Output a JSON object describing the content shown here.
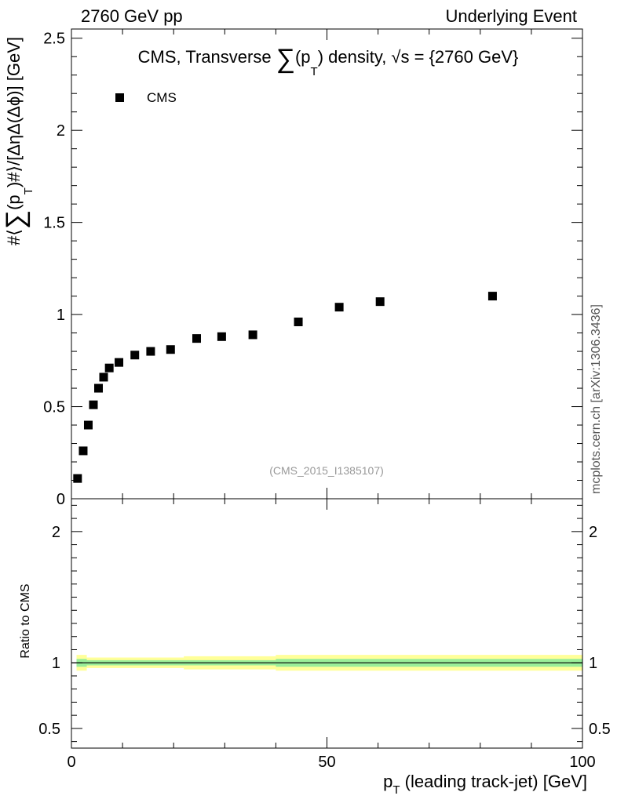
{
  "header": {
    "left": "2760 GeV pp",
    "right": "Underlying Event"
  },
  "side_label": "mcplots.cern.ch [arXiv:1306.3436]",
  "chart_data": [
    {
      "type": "scatter",
      "title_parts": {
        "pre": "CMS, Transverse ",
        "sum": "∑",
        "mid": "(p",
        "sub": "T",
        "post": ") density, √s = {2760 GeV}"
      },
      "ylabel_parts": {
        "pre": "#⟨",
        "sum": "∑",
        "mid": "(p",
        "sub": "T",
        "post": ")#⟩/[ΔηΔ(Δϕ)] [GeV]"
      },
      "xlim": [
        0,
        100
      ],
      "ylim": [
        0,
        2.55
      ],
      "yticks": [
        "0",
        "0.5",
        "1",
        "1.5",
        "2",
        "2.5"
      ],
      "legend": {
        "label": "CMS",
        "position": "top-left"
      },
      "annotation": "(CMS_2015_I1385107)",
      "series": [
        {
          "name": "CMS",
          "marker": "square",
          "x": [
            1.2,
            2.3,
            3.3,
            4.3,
            5.3,
            6.3,
            7.4,
            9.3,
            12.4,
            15.5,
            19.4,
            24.5,
            29.4,
            35.5,
            44.4,
            52.4,
            60.4,
            82.4
          ],
          "y": [
            0.11,
            0.26,
            0.4,
            0.51,
            0.6,
            0.66,
            0.71,
            0.74,
            0.78,
            0.8,
            0.81,
            0.87,
            0.88,
            0.89,
            0.96,
            1.04,
            1.07,
            1.1
          ]
        }
      ]
    },
    {
      "type": "line",
      "ylabel": "Ratio to CMS",
      "xlabel_parts": {
        "pre": "p",
        "sub": "T",
        "post": " (leading track-jet) [GeV]"
      },
      "xlim": [
        0,
        100
      ],
      "ylim": [
        0.35,
        2.25
      ],
      "xticks": [
        "0",
        "50",
        "100"
      ],
      "yticks": [
        "0.5",
        "1",
        "2"
      ],
      "reference": 1,
      "bands": [
        {
          "kind": "total-uncertainty",
          "color": "#ffff99",
          "x": [
            1,
            2,
            3,
            4,
            5,
            6,
            7,
            8,
            10,
            14,
            17,
            22,
            27,
            32,
            40,
            48,
            56,
            64,
            100
          ],
          "low": [
            0.94,
            0.94,
            0.96,
            0.96,
            0.96,
            0.96,
            0.96,
            0.96,
            0.96,
            0.96,
            0.96,
            0.95,
            0.95,
            0.95,
            0.94,
            0.94,
            0.94,
            0.94,
            0.94
          ],
          "high": [
            1.06,
            1.06,
            1.04,
            1.04,
            1.04,
            1.04,
            1.04,
            1.04,
            1.04,
            1.04,
            1.04,
            1.05,
            1.05,
            1.05,
            1.06,
            1.06,
            1.06,
            1.06,
            1.06
          ]
        },
        {
          "kind": "stat-uncertainty",
          "color": "#99ee99",
          "x": [
            1,
            2,
            3,
            4,
            5,
            6,
            7,
            8,
            10,
            14,
            17,
            22,
            27,
            32,
            40,
            48,
            56,
            64,
            100
          ],
          "low": [
            0.97,
            0.97,
            0.98,
            0.98,
            0.98,
            0.98,
            0.98,
            0.98,
            0.98,
            0.98,
            0.98,
            0.98,
            0.98,
            0.98,
            0.97,
            0.97,
            0.97,
            0.97,
            0.97
          ],
          "high": [
            1.03,
            1.03,
            1.02,
            1.02,
            1.02,
            1.02,
            1.02,
            1.02,
            1.02,
            1.02,
            1.02,
            1.02,
            1.02,
            1.02,
            1.03,
            1.03,
            1.03,
            1.03,
            1.03
          ]
        }
      ]
    }
  ]
}
